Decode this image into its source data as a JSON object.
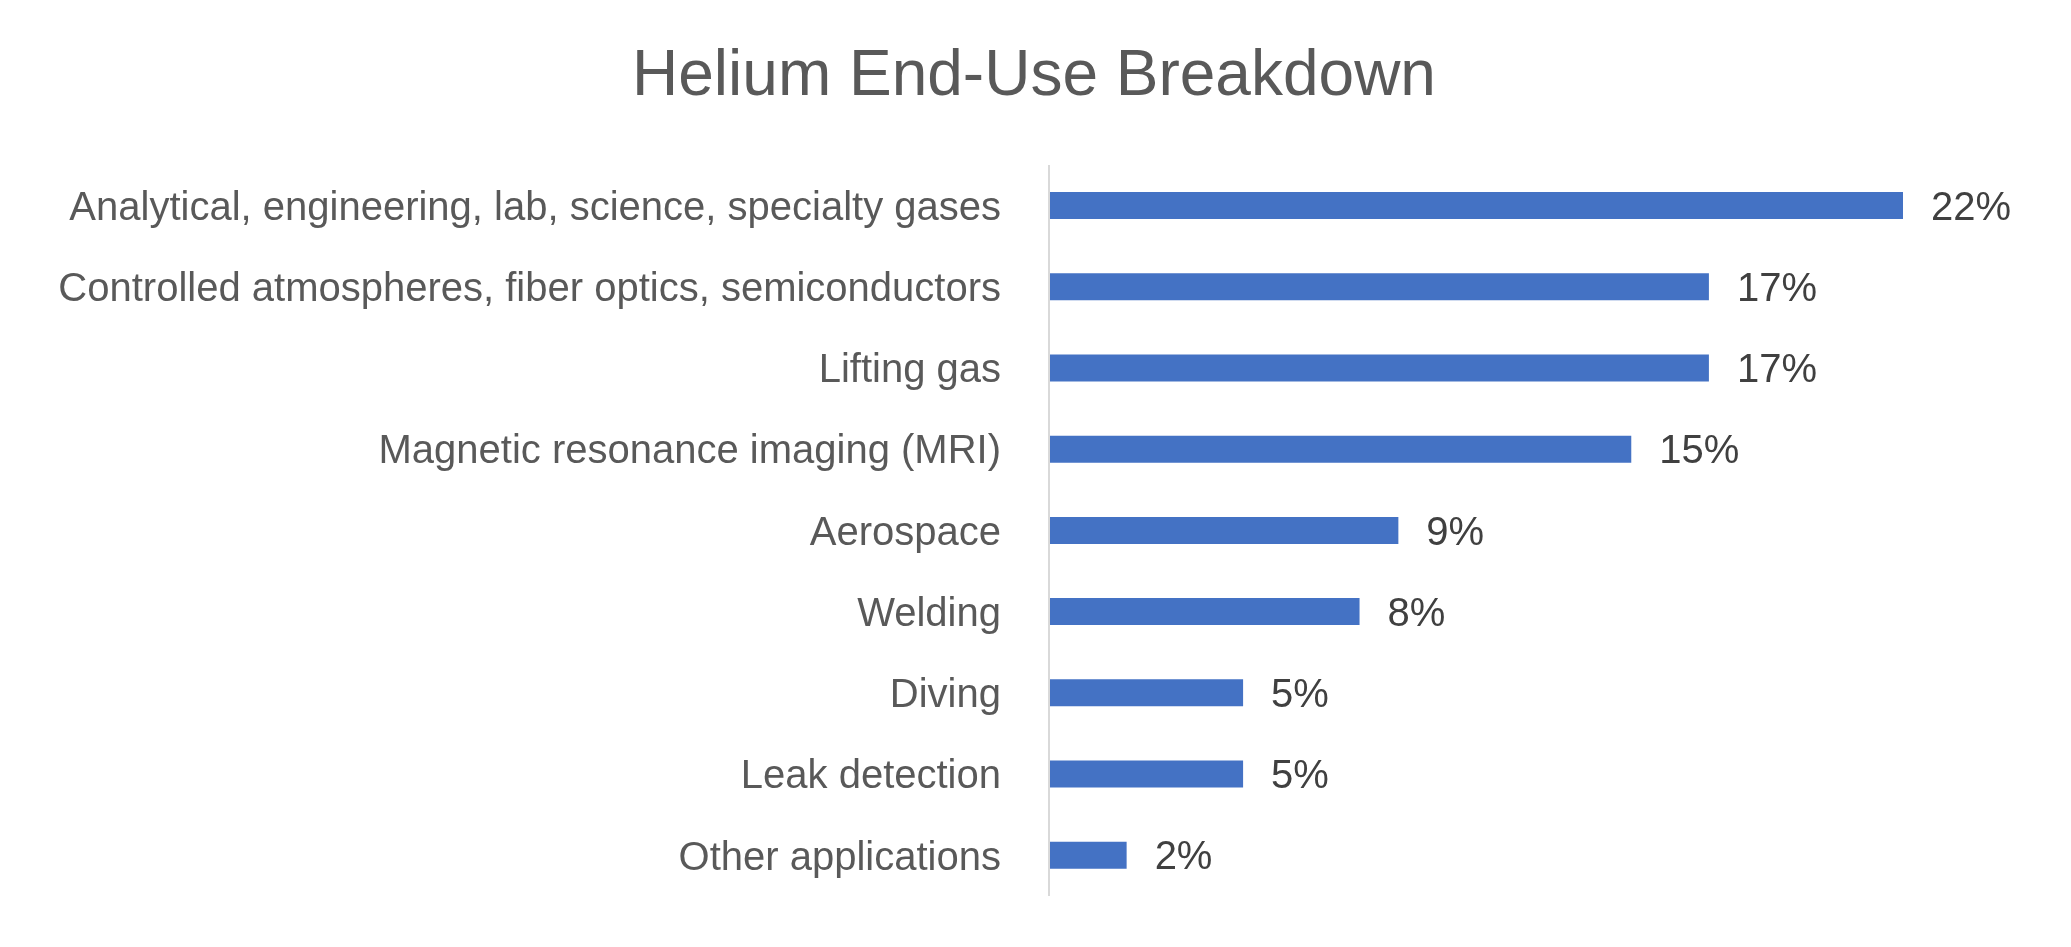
{
  "chart_data": {
    "type": "bar",
    "orientation": "horizontal",
    "title": "Helium End-Use Breakdown",
    "categories": [
      "Analytical, engineering, lab, science, specialty gases",
      "Controlled atmospheres, fiber optics, semiconductors",
      "Lifting gas",
      "Magnetic resonance imaging (MRI)",
      "Aerospace",
      "Welding",
      "Diving",
      "Leak detection",
      "Other applications"
    ],
    "values": [
      22,
      17,
      17,
      15,
      9,
      8,
      5,
      5,
      2
    ],
    "value_labels": [
      "22%",
      "17%",
      "17%",
      "15%",
      "9%",
      "8%",
      "5%",
      "5%",
      "2%"
    ],
    "color": "#4472c4"
  }
}
